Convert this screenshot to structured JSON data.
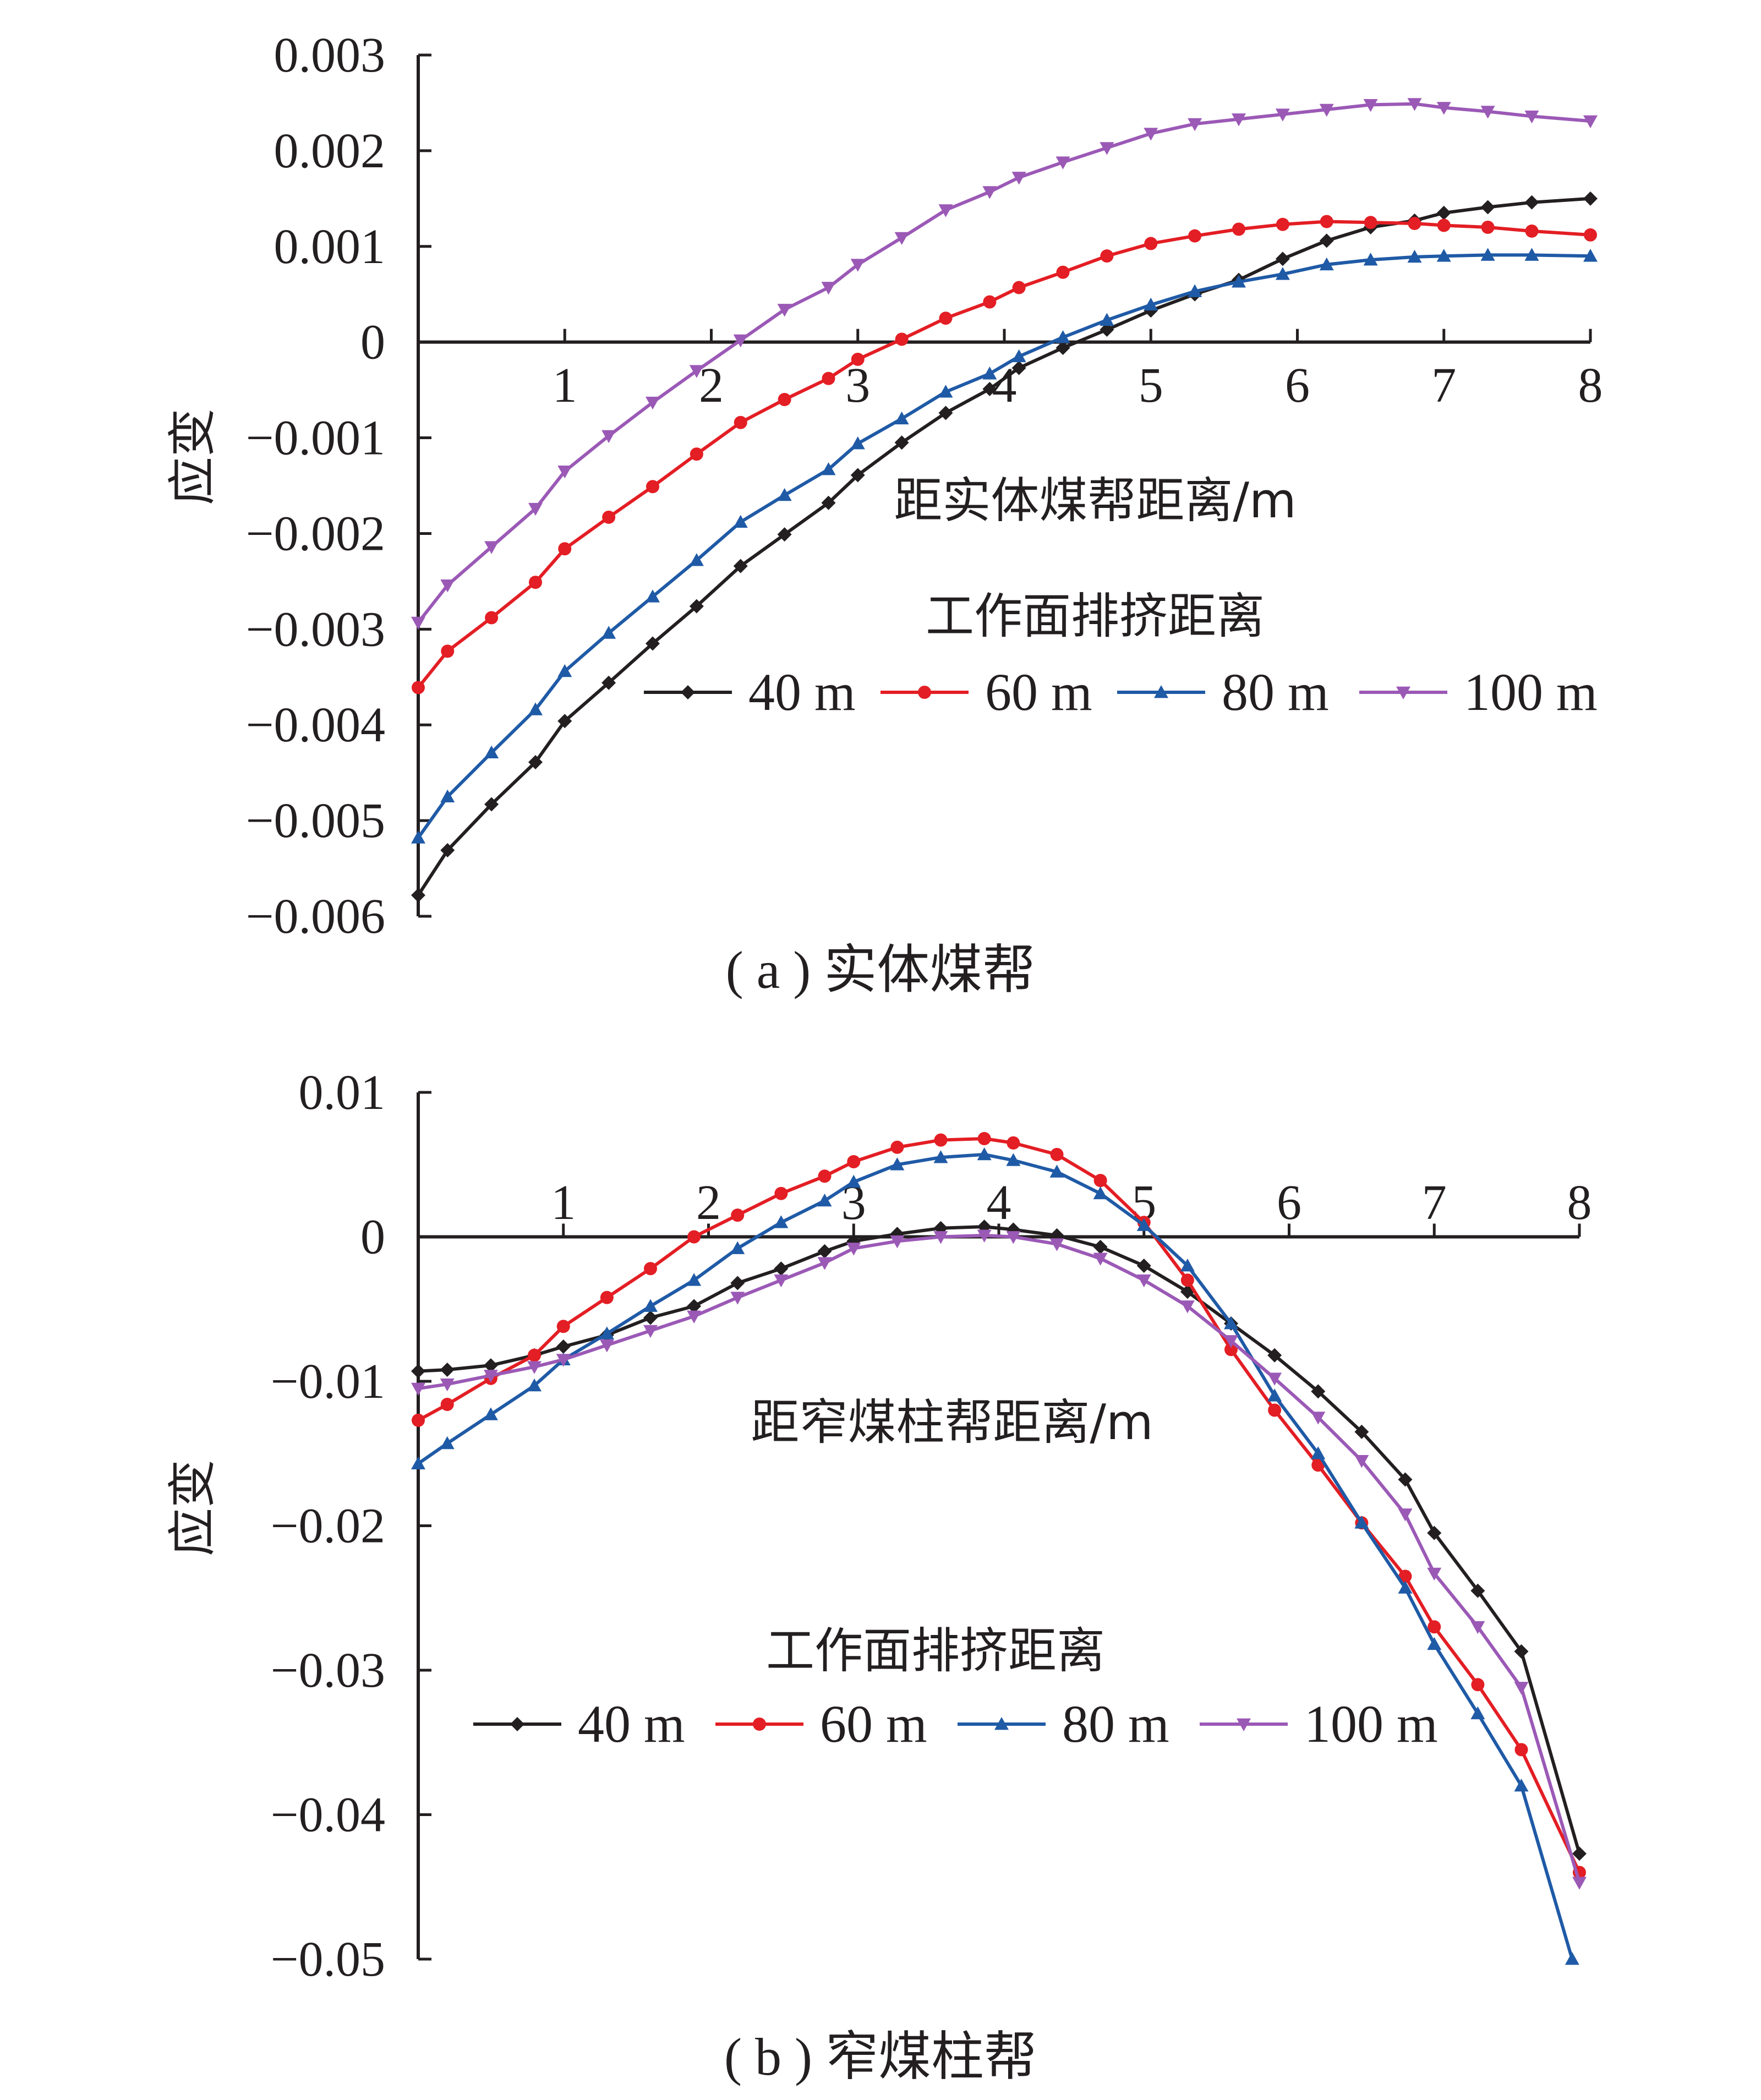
{
  "chart_data": [
    {
      "type": "line",
      "caption": "( a ) 实体煤帮",
      "xlabel": "距实体煤帮距离/m",
      "ylabel": "应变",
      "legend_title": "工作面排挤距离",
      "legend_placement": "middle-right",
      "xlim": [
        0,
        8
      ],
      "ylim": [
        -0.006,
        0.003
      ],
      "x_ticks": [
        "1",
        "2",
        "3",
        "4",
        "5",
        "6",
        "7",
        "8"
      ],
      "y_ticks": [
        "0.003",
        "0.002",
        "0.001",
        "0",
        "−0.001",
        "−0.002",
        "−0.003",
        "−0.004",
        "−0.005",
        "−0.006"
      ],
      "grid": false,
      "series": [
        {
          "name": "40 m",
          "color": "#231f20",
          "marker": "diamond",
          "x": [
            0,
            0.2,
            0.5,
            0.8,
            1.0,
            1.3,
            1.6,
            1.9,
            2.2,
            2.5,
            2.8,
            3.0,
            3.3,
            3.6,
            3.9,
            4.1,
            4.4,
            4.7,
            5.0,
            5.3,
            5.6,
            5.9,
            6.2,
            6.5,
            6.8,
            7.0,
            7.3,
            7.6,
            8.0
          ],
          "values": [
            -0.00578,
            -0.00531,
            -0.00483,
            -0.00439,
            -0.00396,
            -0.00356,
            -0.00315,
            -0.00276,
            -0.00234,
            -0.00201,
            -0.00168,
            -0.00139,
            -0.00105,
            -0.00074,
            -0.00049,
            -0.00027,
            -6e-05,
            0.00013,
            0.00033,
            0.0005,
            0.00065,
            0.00087,
            0.00106,
            0.0012,
            0.00127,
            0.00135,
            0.00141,
            0.00146,
            0.0015
          ]
        },
        {
          "name": "60 m",
          "color": "#e31e24",
          "marker": "circle",
          "x": [
            0,
            0.2,
            0.5,
            0.8,
            1.0,
            1.3,
            1.6,
            1.9,
            2.2,
            2.5,
            2.8,
            3.0,
            3.3,
            3.6,
            3.9,
            4.1,
            4.4,
            4.7,
            5.0,
            5.3,
            5.6,
            5.9,
            6.2,
            6.5,
            6.8,
            7.0,
            7.3,
            7.6,
            8.0
          ],
          "values": [
            -0.00361,
            -0.00323,
            -0.00288,
            -0.00251,
            -0.00216,
            -0.00183,
            -0.00151,
            -0.00117,
            -0.00084,
            -0.0006,
            -0.00038,
            -0.00018,
            3e-05,
            0.00025,
            0.00042,
            0.00057,
            0.00073,
            0.0009,
            0.00103,
            0.00111,
            0.00118,
            0.00123,
            0.00126,
            0.00125,
            0.00124,
            0.00122,
            0.0012,
            0.00116,
            0.00112
          ]
        },
        {
          "name": "80 m",
          "color": "#1f5aa6",
          "marker": "triangle-up",
          "x": [
            0,
            0.2,
            0.5,
            0.8,
            1.0,
            1.3,
            1.6,
            1.9,
            2.2,
            2.5,
            2.8,
            3.0,
            3.3,
            3.6,
            3.9,
            4.1,
            4.4,
            4.7,
            5.0,
            5.3,
            5.6,
            5.9,
            6.2,
            6.5,
            6.8,
            7.0,
            7.3,
            7.6,
            8.0
          ],
          "values": [
            -0.00518,
            -0.00475,
            -0.00429,
            -0.00384,
            -0.00344,
            -0.00304,
            -0.00266,
            -0.00228,
            -0.00188,
            -0.0016,
            -0.00133,
            -0.00106,
            -0.0008,
            -0.00052,
            -0.00033,
            -0.00015,
            5e-05,
            0.00023,
            0.00039,
            0.00053,
            0.00063,
            0.00071,
            0.00081,
            0.00086,
            0.00089,
            0.0009,
            0.00091,
            0.00091,
            0.0009
          ]
        },
        {
          "name": "100 m",
          "color": "#9b59b6",
          "marker": "triangle-down",
          "x": [
            0,
            0.2,
            0.5,
            0.8,
            1.0,
            1.3,
            1.6,
            1.9,
            2.2,
            2.5,
            2.8,
            3.0,
            3.3,
            3.6,
            3.9,
            4.1,
            4.4,
            4.7,
            5.0,
            5.3,
            5.6,
            5.9,
            6.2,
            6.5,
            6.8,
            7.0,
            7.3,
            7.6,
            8.0
          ],
          "values": [
            -0.00293,
            -0.00254,
            -0.00214,
            -0.00174,
            -0.00135,
            -0.00098,
            -0.00063,
            -0.0003,
            2e-05,
            0.00034,
            0.00057,
            0.00081,
            0.00109,
            0.00138,
            0.00157,
            0.00172,
            0.00188,
            0.00203,
            0.00218,
            0.00228,
            0.00233,
            0.00238,
            0.00243,
            0.00248,
            0.00249,
            0.00245,
            0.00241,
            0.00236,
            0.00231
          ]
        }
      ]
    },
    {
      "type": "line",
      "caption": "( b ) 窄煤柱帮",
      "xlabel": "距窄煤柱帮距离/m",
      "ylabel": "应变",
      "legend_title": "工作面排挤距离",
      "legend_placement": "bottom-center",
      "xlim": [
        0,
        8
      ],
      "ylim": [
        -0.05,
        0.01
      ],
      "x_ticks": [
        "1",
        "2",
        "3",
        "4",
        "5",
        "6",
        "7",
        "8"
      ],
      "y_ticks": [
        "0.01",
        "0",
        "−0.01",
        "−0.02",
        "−0.03",
        "−0.04",
        "−0.05"
      ],
      "grid": false,
      "series": [
        {
          "name": "40 m",
          "color": "#231f20",
          "marker": "diamond",
          "x": [
            0,
            0.2,
            0.5,
            0.8,
            1.0,
            1.3,
            1.6,
            1.9,
            2.2,
            2.5,
            2.8,
            3.0,
            3.3,
            3.6,
            3.9,
            4.1,
            4.4,
            4.7,
            5.0,
            5.3,
            5.6,
            5.9,
            6.2,
            6.5,
            6.8,
            7.0,
            7.3,
            7.6,
            8.0
          ],
          "values": [
            -0.0093,
            -0.0092,
            -0.0089,
            -0.0082,
            -0.0076,
            -0.0068,
            -0.0056,
            -0.0048,
            -0.0032,
            -0.0022,
            -0.001,
            -0.0003,
            0.0002,
            0.0006,
            0.0007,
            0.0005,
            0.0001,
            -0.0007,
            -0.002,
            -0.0038,
            -0.006,
            -0.0082,
            -0.0107,
            -0.0135,
            -0.0168,
            -0.0205,
            -0.0245,
            -0.0287,
            -0.0427
          ]
        },
        {
          "name": "60 m",
          "color": "#e31e24",
          "marker": "circle",
          "x": [
            0,
            0.2,
            0.5,
            0.8,
            1.0,
            1.3,
            1.6,
            1.9,
            2.2,
            2.5,
            2.8,
            3.0,
            3.3,
            3.6,
            3.9,
            4.1,
            4.4,
            4.7,
            5.0,
            5.3,
            5.6,
            5.9,
            6.2,
            6.5,
            6.8,
            7.0,
            7.3,
            7.6,
            8.0
          ],
          "values": [
            -0.0127,
            -0.0116,
            -0.0098,
            -0.0082,
            -0.0062,
            -0.0042,
            -0.0022,
            0.0,
            0.0015,
            0.003,
            0.0042,
            0.0052,
            0.0062,
            0.0067,
            0.0068,
            0.0065,
            0.0057,
            0.0039,
            0.001,
            -0.003,
            -0.0078,
            -0.012,
            -0.0158,
            -0.0198,
            -0.0235,
            -0.027,
            -0.031,
            -0.0355,
            -0.044
          ]
        },
        {
          "name": "80 m",
          "color": "#1f5aa6",
          "marker": "triangle-up",
          "x": [
            0,
            0.2,
            0.5,
            0.8,
            1.0,
            1.3,
            1.6,
            1.9,
            2.2,
            2.5,
            2.8,
            3.0,
            3.3,
            3.6,
            3.9,
            4.1,
            4.4,
            4.7,
            5.0,
            5.3,
            5.6,
            5.9,
            6.2,
            6.5,
            6.8,
            7.0,
            7.3,
            7.6,
            7.95
          ],
          "values": [
            -0.0157,
            -0.0143,
            -0.0123,
            -0.0103,
            -0.0085,
            -0.0067,
            -0.0048,
            -0.003,
            -0.0008,
            0.001,
            0.0025,
            0.0038,
            0.005,
            0.0055,
            0.0057,
            0.0053,
            0.0045,
            0.003,
            0.0008,
            -0.002,
            -0.006,
            -0.011,
            -0.015,
            -0.0198,
            -0.0243,
            -0.0282,
            -0.033,
            -0.038,
            -0.05
          ]
        },
        {
          "name": "100 m",
          "color": "#9b59b6",
          "marker": "triangle-down",
          "x": [
            0,
            0.2,
            0.5,
            0.8,
            1.0,
            1.3,
            1.6,
            1.9,
            2.2,
            2.5,
            2.8,
            3.0,
            3.3,
            3.6,
            3.9,
            4.1,
            4.4,
            4.7,
            5.0,
            5.3,
            5.6,
            5.9,
            6.2,
            6.5,
            6.8,
            7.0,
            7.3,
            7.6,
            8.0
          ],
          "values": [
            -0.0105,
            -0.0102,
            -0.0096,
            -0.009,
            -0.0085,
            -0.0075,
            -0.0065,
            -0.0055,
            -0.0042,
            -0.003,
            -0.0018,
            -0.0008,
            -0.0003,
            0.0,
            0.0001,
            0.0,
            -0.0005,
            -0.0015,
            -0.003,
            -0.0048,
            -0.0072,
            -0.0098,
            -0.0125,
            -0.0155,
            -0.0192,
            -0.0233,
            -0.027,
            -0.0312,
            -0.0447
          ]
        }
      ]
    }
  ]
}
